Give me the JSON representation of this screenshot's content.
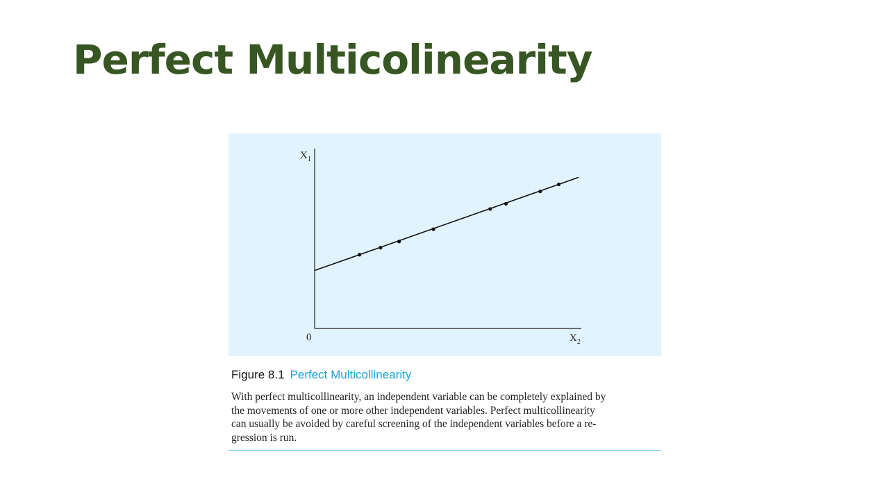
{
  "slide": {
    "title": "Perfect Multicolinearity"
  },
  "figure": {
    "number": "Figure 8.1",
    "title": "Perfect Multicollinearity",
    "caption_lines": [
      "With perfect multicollinearity, an independent variable can be completely explained by",
      "the movements of one or more other independent variables. Perfect multicollinearity",
      "can usually be avoided by careful screening of the independent variables before a re-",
      "gression is run."
    ]
  },
  "colors": {
    "title": "#375623",
    "panel_background": "#e1f3fc",
    "figure_title": "#1aa3dc",
    "line": "#111111"
  },
  "chart_data": {
    "type": "scatter",
    "xlabel": {
      "base": "X",
      "sub": "2"
    },
    "ylabel": {
      "base": "X",
      "sub": "1"
    },
    "origin_label": "0",
    "ticks": false,
    "grid": false,
    "legend": "none",
    "xlim": [
      0,
      100
    ],
    "ylim": [
      0,
      100
    ],
    "fit_line": {
      "x": [
        0,
        100
      ],
      "y": [
        33,
        86
      ]
    },
    "points": [
      {
        "x": 17,
        "y": 42
      },
      {
        "x": 25,
        "y": 46
      },
      {
        "x": 32,
        "y": 49.5
      },
      {
        "x": 45,
        "y": 56.5
      },
      {
        "x": 66.5,
        "y": 68
      },
      {
        "x": 72.5,
        "y": 71
      },
      {
        "x": 85.5,
        "y": 78
      },
      {
        "x": 92.5,
        "y": 82
      }
    ]
  }
}
